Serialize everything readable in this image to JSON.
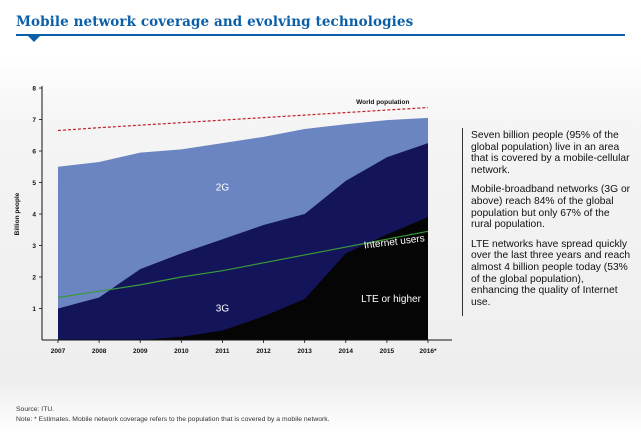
{
  "page": {
    "title": "Mobile network coverage and evolving technologies"
  },
  "chart_data": {
    "type": "area",
    "title": "Mobile network coverage and evolving technologies",
    "xlabel": "",
    "ylabel": "Billion people",
    "ylim": [
      0,
      8
    ],
    "yticks": [
      "1",
      "2",
      "3",
      "4",
      "5",
      "6",
      "7",
      "8"
    ],
    "categories": [
      "2007",
      "2008",
      "2009",
      "2010",
      "2011",
      "2012",
      "2013",
      "2014",
      "2015",
      "2016*"
    ],
    "series": [
      {
        "name": "2G",
        "label": "2G",
        "color": "#6b85c2",
        "values": [
          5.5,
          5.65,
          5.95,
          6.05,
          6.25,
          6.45,
          6.7,
          6.85,
          6.98,
          7.05
        ]
      },
      {
        "name": "3G",
        "label": "3G",
        "color": "#14145a",
        "values": [
          1.0,
          1.35,
          2.25,
          2.75,
          3.2,
          3.65,
          4.0,
          5.05,
          5.8,
          6.25
        ]
      },
      {
        "name": "LTE or higher",
        "label": "LTE or higher",
        "color": "#050505",
        "values": [
          0.0,
          0.0,
          0.0,
          0.1,
          0.3,
          0.75,
          1.3,
          2.75,
          3.35,
          3.9
        ]
      }
    ],
    "lines": [
      {
        "name": "World population",
        "label": "World population",
        "color": "#c0202a",
        "style": "dashed",
        "values": [
          6.65,
          6.74,
          6.82,
          6.9,
          6.98,
          7.06,
          7.14,
          7.22,
          7.3,
          7.38
        ]
      },
      {
        "name": "Internet users",
        "label": "Internet users",
        "color": "#3a9a3a",
        "style": "solid",
        "values": [
          1.35,
          1.55,
          1.75,
          2.0,
          2.2,
          2.45,
          2.7,
          2.95,
          3.2,
          3.45
        ]
      }
    ],
    "grid": false
  },
  "side_text": {
    "p1": "Seven billion people (95% of the global population) live in an area that is covered by a mobile-cellular network.",
    "p2": "Mobile-broadband networks (3G or above) reach 84% of the global population but only 67% of the rural population.",
    "p3": "LTE networks have spread quickly over the last three years and reach almost 4 billion people today (53% of the global population), enhancing the quality of Internet use."
  },
  "footnotes": {
    "source": "Source: ITU.",
    "note": "Note: * Estimates. Mobile network coverage refers to the population that is covered by a mobile network."
  },
  "colors": {
    "brand": "#0a5fa8"
  }
}
